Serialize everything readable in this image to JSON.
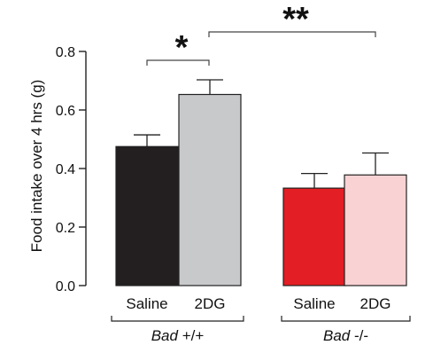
{
  "chart_data": {
    "type": "bar",
    "ylabel": "Food intake over 4 hrs (g)",
    "ylim": [
      0,
      0.8
    ],
    "yticks": [
      "0.0",
      "0.2",
      "0.4",
      "0.6",
      "0.8"
    ],
    "grid": false,
    "bars": [
      {
        "group": "Bad +/+",
        "label": "Saline",
        "value": 0.475,
        "error": 0.04,
        "color": "#231f20"
      },
      {
        "group": "Bad +/+",
        "label": "2DG",
        "value": 0.653,
        "error": 0.05,
        "color": "#c8c9cb"
      },
      {
        "group": "Bad -/-",
        "label": "Saline",
        "value": 0.333,
        "error": 0.05,
        "color": "#e31e24"
      },
      {
        "group": "Bad -/-",
        "label": "2DG",
        "value": 0.378,
        "error": 0.075,
        "color": "#f9d2d3"
      }
    ],
    "groups": [
      {
        "name": "Bad",
        "suffix": "+/+"
      },
      {
        "name": "Bad",
        "suffix": "-/-"
      }
    ],
    "significance": [
      {
        "from_bar": 0,
        "to_bar": 1,
        "label": "*"
      },
      {
        "from_bar": 1,
        "to_bar": 3,
        "label": "**"
      }
    ]
  }
}
